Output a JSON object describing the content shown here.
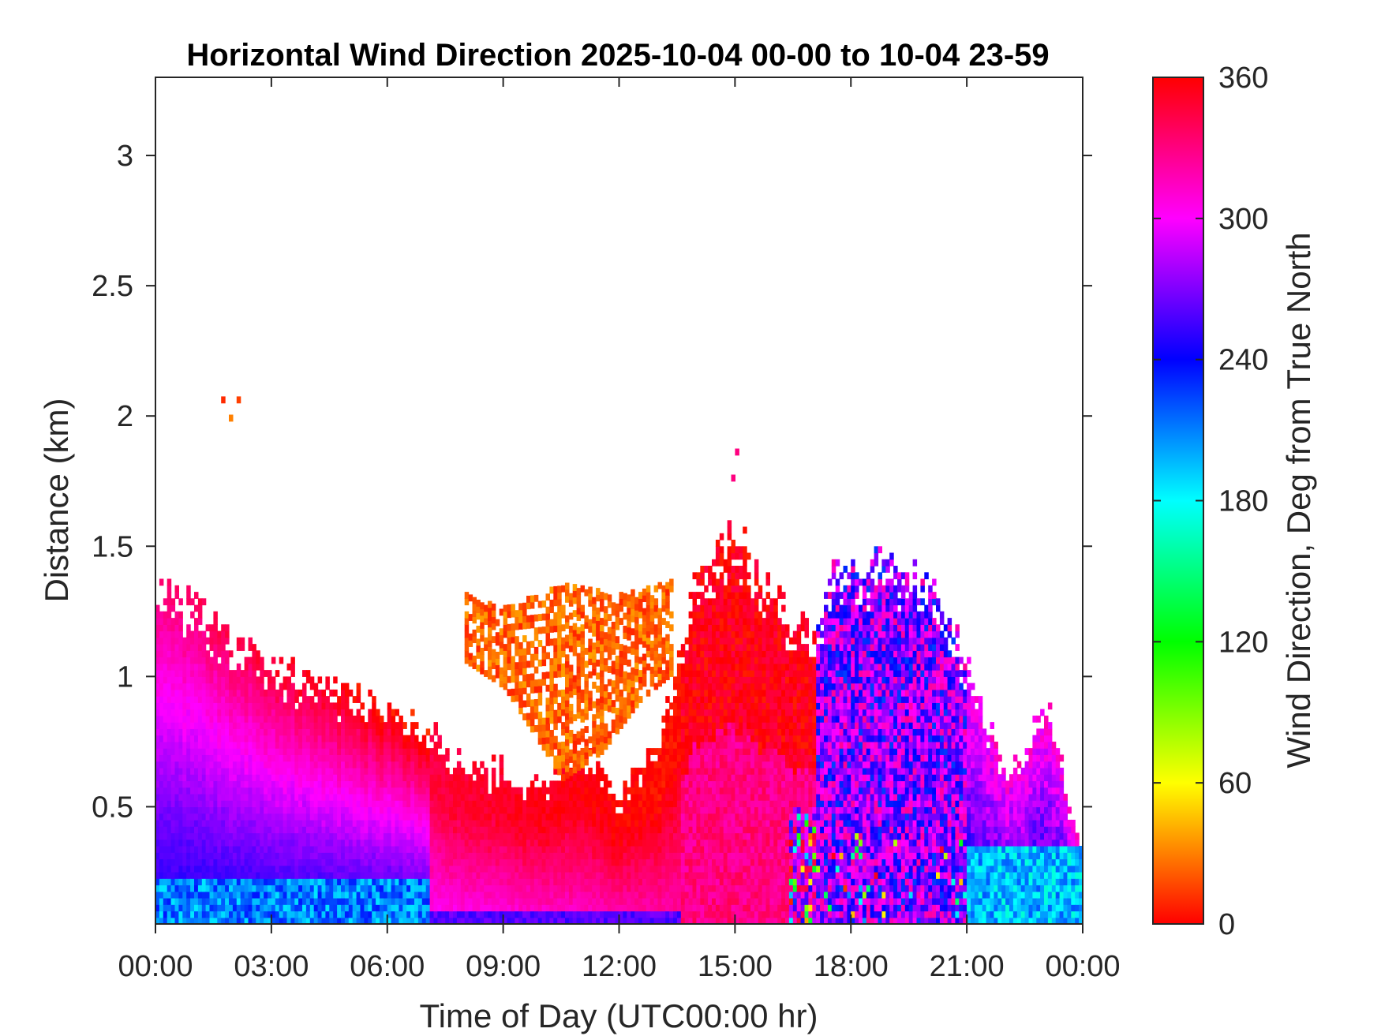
{
  "chart_data": {
    "type": "heatmap",
    "title": "Horizontal Wind Direction 2025-10-04 00-00 to 10-04 23-59",
    "xlabel": "Time of Day (UTC00:00 hr)",
    "ylabel": "Distance (km)",
    "xlim_hours": [
      0,
      24
    ],
    "ylim_km": [
      0.05,
      3.3
    ],
    "x_ticks": [
      {
        "value": 0,
        "label": "00:00"
      },
      {
        "value": 3,
        "label": "03:00"
      },
      {
        "value": 6,
        "label": "06:00"
      },
      {
        "value": 9,
        "label": "09:00"
      },
      {
        "value": 12,
        "label": "12:00"
      },
      {
        "value": 15,
        "label": "15:00"
      },
      {
        "value": 18,
        "label": "18:00"
      },
      {
        "value": 21,
        "label": "21:00"
      },
      {
        "value": 24,
        "label": "00:00"
      }
    ],
    "y_ticks": [
      {
        "value": 0.5,
        "label": "0.5"
      },
      {
        "value": 1,
        "label": "1"
      },
      {
        "value": 1.5,
        "label": "1.5"
      },
      {
        "value": 2,
        "label": "2"
      },
      {
        "value": 2.5,
        "label": "2.5"
      },
      {
        "value": 3,
        "label": "3"
      }
    ],
    "colorbar": {
      "label": "Wind Direction, Deg from True North",
      "range": [
        0,
        360
      ],
      "ticks": [
        0,
        60,
        120,
        180,
        240,
        300,
        360
      ],
      "colormap": "hsv",
      "colors": [
        "#ff0000",
        "#ffff00",
        "#00ff00",
        "#00ffff",
        "#0000ff",
        "#ff00ff",
        "#ff0000"
      ]
    },
    "grid": false,
    "regions": [
      {
        "period": "00:00-07:00",
        "top_km": [
          1.3,
          0.95
        ],
        "direction_deg_low": 200,
        "direction_deg_mid": 250,
        "direction_deg_top": 330
      },
      {
        "period": "07:00-13:00",
        "top_km": [
          0.85,
          0.75
        ],
        "direction_deg": 330
      },
      {
        "period": "08:00-13:00",
        "height_km": [
          0.8,
          1.35
        ],
        "direction_deg": 15
      },
      {
        "period": "13:30-17:00",
        "top_km": [
          1.6,
          1.2
        ],
        "direction_deg": 355
      },
      {
        "period": "17:00-21:00",
        "top_km": [
          1.5,
          1.2
        ],
        "direction_deg": 270
      },
      {
        "period": "21:00-24:00",
        "top_km": [
          0.9,
          0.5
        ],
        "direction_deg_low": 160,
        "direction_deg_top": 300
      }
    ]
  }
}
